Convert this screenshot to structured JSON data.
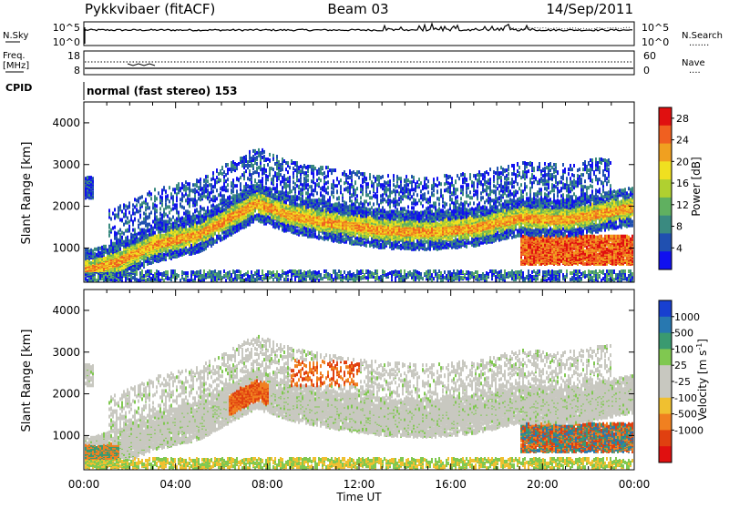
{
  "header": {
    "station": "Pykkvibaer (fitACF)",
    "beam": "Beam 03",
    "date": "14/Sep/2011"
  },
  "noise_panel": {
    "left_label": "N.Sky",
    "left_top_tick": "10^5",
    "left_bottom_tick": "10^0",
    "right_top_tick": "10^5",
    "right_bottom_tick": "10^0",
    "right_label": "N.Search",
    "line_style_note": "......."
  },
  "freq_panel": {
    "left_label_1": "Freq.",
    "left_label_2": "[MHz]",
    "left_top_tick": "18",
    "left_bottom_tick": "8",
    "right_top_tick": "60",
    "right_bottom_tick": "0",
    "right_label": "Nave",
    "line_style_note": "...."
  },
  "cpid": {
    "label": "CPID",
    "text": "normal (fast stereo) 153"
  },
  "chart_data": [
    {
      "type": "heatmap",
      "name_printed": "",
      "ylabel": "Slant Range [km]",
      "ylim": [
        180,
        4500
      ],
      "y_ticks": [
        "1000",
        "2000",
        "3000",
        "4000"
      ],
      "x_ticks": [
        "00:00",
        "04:00",
        "08:00",
        "12:00",
        "16:00",
        "20:00",
        "00:00"
      ],
      "xlim_hours": [
        0,
        24
      ],
      "colorbar": {
        "label": "Power [dB]",
        "ticks": [
          "4",
          "8",
          "12",
          "16",
          "20",
          "24",
          "28"
        ],
        "range": [
          0,
          30
        ],
        "colors": [
          "#1010f0",
          "#2050b0",
          "#3a8a80",
          "#60b060",
          "#b0d030",
          "#f0e020",
          "#f0a020",
          "#f06020",
          "#e01010"
        ]
      },
      "echo_bands": [
        {
          "description": "main band",
          "points": [
            [
              0.3,
              500
            ],
            [
              1.5,
              700
            ],
            [
              3,
              1100
            ],
            [
              5,
              1350
            ],
            [
              6.5,
              1800
            ],
            [
              7.5,
              2100
            ],
            [
              9,
              1800
            ],
            [
              11,
              1600
            ],
            [
              13,
              1450
            ],
            [
              15,
              1400
            ],
            [
              17,
              1500
            ],
            [
              19,
              1750
            ],
            [
              21,
              1700
            ],
            [
              23,
              1900
            ],
            [
              24,
              2000
            ]
          ],
          "mean_power": 18
        }
      ]
    },
    {
      "type": "heatmap",
      "name_printed": "",
      "ylabel": "Slant Range [km]",
      "ylim": [
        180,
        4500
      ],
      "y_ticks": [
        "1000",
        "2000",
        "3000",
        "4000"
      ],
      "x_ticks": [
        "00:00",
        "04:00",
        "08:00",
        "12:00",
        "16:00",
        "20:00",
        "00:00"
      ],
      "xlim_hours": [
        0,
        24
      ],
      "xlabel": "Time UT",
      "colorbar": {
        "label": "Velocity [m s^-1]",
        "ticks": [
          "1000",
          "500",
          "100",
          "25",
          "-25",
          "-100",
          "-500",
          "-1000"
        ],
        "colors": [
          "#1840d0",
          "#2878b0",
          "#3a9a70",
          "#80c850",
          "#c8c8c0",
          "#c8c8c0",
          "#f0c030",
          "#f08020",
          "#e04010",
          "#e01010"
        ]
      }
    }
  ]
}
